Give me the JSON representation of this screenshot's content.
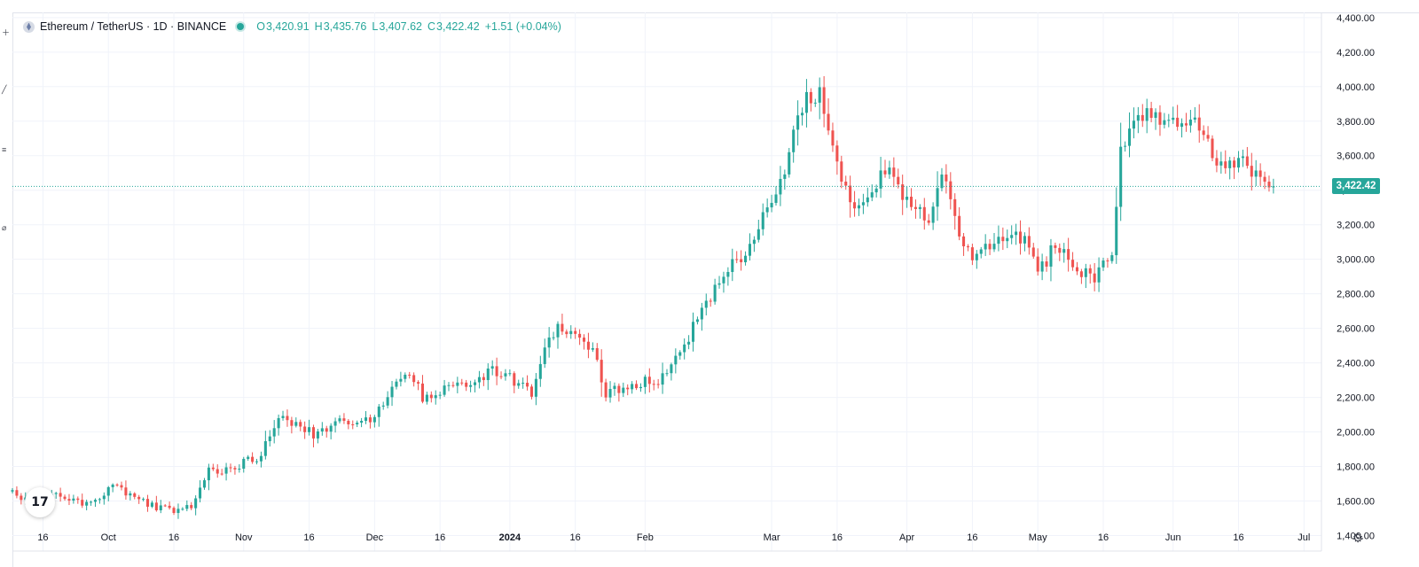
{
  "legend": {
    "symbol": "Ethereum / TetherUS · 1D · BINANCE",
    "open_label": "O",
    "open": "3,420.91",
    "high_label": "H",
    "high": "3,435.76",
    "low_label": "L",
    "low": "3,407.62",
    "close_label": "C",
    "close": "3,422.42",
    "change": "+1.51 (+0.04%)"
  },
  "last_price_label": "3,422.42",
  "logo_text": "17",
  "colors": {
    "up": "#26a69a",
    "down": "#ef5350",
    "grid": "#f0f3fa",
    "axis_text": "#131722"
  },
  "chart_data": {
    "type": "candlestick",
    "x_range": [
      "2023-09-09",
      "2024-07-05"
    ],
    "ylim": [
      1310,
      4430
    ],
    "y_ticks": [
      1400,
      1600,
      1800,
      2000,
      2200,
      2400,
      2600,
      2800,
      3000,
      3200,
      3400,
      3600,
      3800,
      4000,
      4200,
      4400
    ],
    "y_tick_labels": [
      "1,400.00",
      "1,600.00",
      "1,800.00",
      "2,000.00",
      "2,200.00",
      "2,400.00",
      "2,600.00",
      "2,800.00",
      "3,000.00",
      "3,200.00",
      "3,400.00",
      "3,600.00",
      "3,800.00",
      "4,000.00",
      "4,200.00",
      "4,400.00"
    ],
    "x_ticks": [
      {
        "label": "16",
        "date": "2023-09-16"
      },
      {
        "label": "Oct",
        "date": "2023-10-01"
      },
      {
        "label": "16",
        "date": "2023-10-16"
      },
      {
        "label": "Nov",
        "date": "2023-11-01"
      },
      {
        "label": "16",
        "date": "2023-11-16"
      },
      {
        "label": "Dec",
        "date": "2023-12-01"
      },
      {
        "label": "16",
        "date": "2023-12-16"
      },
      {
        "label": "2024",
        "date": "2024-01-01",
        "bold": true
      },
      {
        "label": "16",
        "date": "2024-01-16"
      },
      {
        "label": "Feb",
        "date": "2024-02-01"
      },
      {
        "label": "Mar",
        "date": "2024-03-01"
      },
      {
        "label": "16",
        "date": "2024-03-16"
      },
      {
        "label": "Apr",
        "date": "2024-04-01"
      },
      {
        "label": "16",
        "date": "2024-04-16"
      },
      {
        "label": "May",
        "date": "2024-05-01"
      },
      {
        "label": "16",
        "date": "2024-05-16"
      },
      {
        "label": "Jun",
        "date": "2024-06-01"
      },
      {
        "label": "16",
        "date": "2024-06-16"
      },
      {
        "label": "Jul",
        "date": "2024-07-01"
      }
    ],
    "start_date": "2023-09-09",
    "close_path": [
      [
        "2023-09-09",
        1640
      ],
      [
        "2023-09-13",
        1600
      ],
      [
        "2023-09-18",
        1640
      ],
      [
        "2023-09-24",
        1590
      ],
      [
        "2023-09-28",
        1610
      ],
      [
        "2023-10-02",
        1690
      ],
      [
        "2023-10-06",
        1640
      ],
      [
        "2023-10-12",
        1560
      ],
      [
        "2023-10-16",
        1540
      ],
      [
        "2023-10-20",
        1570
      ],
      [
        "2023-10-24",
        1770
      ],
      [
        "2023-10-30",
        1790
      ],
      [
        "2023-11-05",
        1870
      ],
      [
        "2023-11-09",
        2110
      ],
      [
        "2023-11-14",
        2020
      ],
      [
        "2023-11-18",
        1980
      ],
      [
        "2023-11-22",
        2070
      ],
      [
        "2023-11-27",
        2040
      ],
      [
        "2023-12-01",
        2100
      ],
      [
        "2023-12-06",
        2290
      ],
      [
        "2023-12-09",
        2350
      ],
      [
        "2023-12-12",
        2200
      ],
      [
        "2023-12-17",
        2250
      ],
      [
        "2023-12-23",
        2300
      ],
      [
        "2023-12-28",
        2350
      ],
      [
        "2024-01-02",
        2300
      ],
      [
        "2024-01-06",
        2230
      ],
      [
        "2024-01-10",
        2560
      ],
      [
        "2024-01-12",
        2600
      ],
      [
        "2024-01-16",
        2550
      ],
      [
        "2024-01-20",
        2480
      ],
      [
        "2024-01-23",
        2230
      ],
      [
        "2024-01-27",
        2260
      ],
      [
        "2024-02-01",
        2300
      ],
      [
        "2024-02-05",
        2310
      ],
      [
        "2024-02-10",
        2510
      ],
      [
        "2024-02-15",
        2750
      ],
      [
        "2024-02-20",
        2950
      ],
      [
        "2024-02-25",
        3050
      ],
      [
        "2024-03-01",
        3350
      ],
      [
        "2024-03-05",
        3600
      ],
      [
        "2024-03-08",
        3900
      ],
      [
        "2024-03-12",
        3980
      ],
      [
        "2024-03-16",
        3520
      ],
      [
        "2024-03-20",
        3300
      ],
      [
        "2024-03-24",
        3430
      ],
      [
        "2024-03-28",
        3530
      ],
      [
        "2024-04-02",
        3300
      ],
      [
        "2024-04-06",
        3250
      ],
      [
        "2024-04-09",
        3540
      ],
      [
        "2024-04-13",
        3150
      ],
      [
        "2024-04-16",
        3020
      ],
      [
        "2024-04-20",
        3060
      ],
      [
        "2024-04-25",
        3180
      ],
      [
        "2024-04-29",
        3060
      ],
      [
        "2024-05-01",
        2900
      ],
      [
        "2024-05-05",
        3100
      ],
      [
        "2024-05-10",
        2950
      ],
      [
        "2024-05-14",
        2900
      ],
      [
        "2024-05-18",
        3050
      ],
      [
        "2024-05-20",
        3650
      ],
      [
        "2024-05-23",
        3800
      ],
      [
        "2024-05-28",
        3850
      ],
      [
        "2024-06-01",
        3780
      ],
      [
        "2024-06-06",
        3770
      ],
      [
        "2024-06-09",
        3700
      ],
      [
        "2024-06-12",
        3520
      ],
      [
        "2024-06-16",
        3560
      ],
      [
        "2024-06-20",
        3520
      ],
      [
        "2024-06-24",
        3422.42
      ]
    ]
  }
}
